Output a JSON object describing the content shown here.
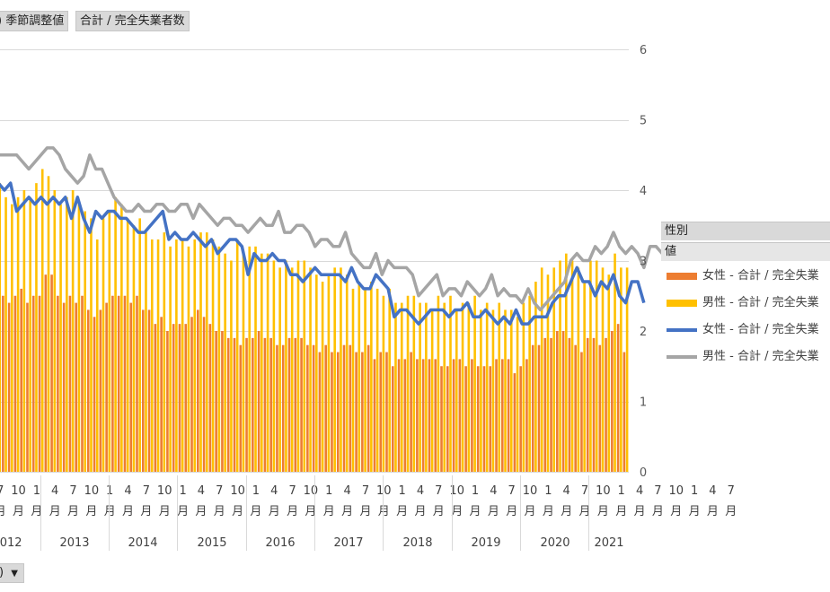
{
  "filters": {
    "field1": ") 季節調整値",
    "field2": "合計 / 完全失業者数"
  },
  "legend": {
    "field_label": "性別",
    "values_label": "値",
    "items": [
      {
        "label": "女性 - 合計 / 完全失業",
        "type": "bar",
        "color": "#ed7d31"
      },
      {
        "label": "男性 - 合計 / 完全失業",
        "type": "bar",
        "color": "#ffc000"
      },
      {
        "label": "女性 - 合計 / 完全失業",
        "type": "line",
        "color": "#4472c4"
      },
      {
        "label": "男性 - 合計 / 完全失業",
        "type": "line",
        "color": "#a5a5a5"
      }
    ]
  },
  "axis_field_button": ")",
  "chart_data": {
    "type": "bar",
    "ylim": [
      0,
      6
    ],
    "yticks": [
      "0",
      "1",
      "2",
      "3",
      "4",
      "5",
      "6"
    ],
    "grid": true,
    "legend_position": "right",
    "year_labels": [
      "2012",
      "2013",
      "2014",
      "2015",
      "2016",
      "2017",
      "2018",
      "2019",
      "2020",
      "2021"
    ],
    "month_tick_labels": [
      "7",
      "10",
      "1",
      "4",
      "7",
      "10",
      "1",
      "4",
      "7",
      "10",
      "1",
      "4",
      "7",
      "10",
      "1",
      "4",
      "7",
      "10",
      "1",
      "4",
      "7",
      "10",
      "1",
      "4",
      "7",
      "10",
      "1",
      "4",
      "7",
      "10",
      "1",
      "4",
      "7",
      "10",
      "1",
      "4",
      "7",
      "10",
      "1",
      "4",
      "7"
    ],
    "month_unit": "月",
    "series": [
      {
        "name": "女性 - 合計 / 完全失業",
        "type": "bar",
        "color": "#ed7d31",
        "values": [
          2.7,
          2.6,
          2.5,
          2.4,
          2.5,
          2.6,
          2.4,
          2.5,
          2.5,
          2.8,
          2.8,
          2.5,
          2.4,
          2.5,
          2.4,
          2.5,
          2.3,
          2.2,
          2.3,
          2.4,
          2.5,
          2.5,
          2.5,
          2.4,
          2.5,
          2.3,
          2.3,
          2.1,
          2.2,
          2.0,
          2.1,
          2.1,
          2.1,
          2.2,
          2.3,
          2.2,
          2.1,
          2.0,
          2.0,
          1.9,
          1.9,
          1.8,
          1.9,
          1.9,
          2.0,
          1.9,
          1.9,
          1.8,
          1.8,
          1.9,
          1.9,
          1.9,
          1.8,
          1.8,
          1.7,
          1.8,
          1.7,
          1.7,
          1.8,
          1.8,
          1.7,
          1.7,
          1.8,
          1.6,
          1.7,
          1.7,
          1.5,
          1.6,
          1.6,
          1.7,
          1.6,
          1.6,
          1.6,
          1.6,
          1.5,
          1.5,
          1.6,
          1.6,
          1.5,
          1.6,
          1.5,
          1.5,
          1.5,
          1.6,
          1.6,
          1.6,
          1.4,
          1.5,
          1.6,
          1.8,
          1.8,
          1.9,
          1.9,
          2.0,
          2.0,
          1.9,
          1.8,
          1.7,
          1.9,
          1.9,
          1.8,
          1.9,
          2.0,
          2.1,
          1.7
        ]
      },
      {
        "name": "男性 - 合計 / 完全失業",
        "type": "bar",
        "color": "#ffc000",
        "values": [
          4.2,
          4.1,
          3.9,
          3.8,
          3.9,
          4.0,
          3.9,
          4.1,
          4.3,
          4.2,
          4.0,
          3.8,
          3.9,
          4.0,
          3.8,
          3.7,
          3.6,
          3.3,
          3.6,
          3.7,
          3.9,
          3.8,
          3.6,
          3.5,
          3.6,
          3.4,
          3.3,
          3.3,
          3.4,
          3.2,
          3.3,
          3.3,
          3.2,
          3.3,
          3.4,
          3.4,
          3.3,
          3.2,
          3.1,
          3.0,
          3.3,
          3.1,
          3.2,
          3.2,
          3.1,
          3.1,
          3.0,
          2.9,
          3.0,
          2.9,
          3.0,
          3.0,
          2.9,
          2.8,
          2.7,
          2.8,
          2.9,
          2.9,
          2.8,
          2.6,
          2.7,
          2.6,
          2.7,
          2.6,
          2.5,
          2.6,
          2.4,
          2.4,
          2.5,
          2.5,
          2.4,
          2.4,
          2.3,
          2.5,
          2.4,
          2.5,
          2.3,
          2.4,
          2.4,
          2.5,
          2.3,
          2.4,
          2.3,
          2.4,
          2.3,
          2.3,
          2.2,
          2.4,
          2.5,
          2.7,
          2.9,
          2.8,
          2.9,
          3.0,
          3.1,
          3.0,
          2.9,
          2.7,
          3.0,
          3.0,
          2.9,
          2.8,
          3.1,
          2.9,
          2.9
        ]
      },
      {
        "name": "女性 - 合計 / 完全失業",
        "type": "line",
        "color": "#4472c4",
        "values": [
          4.2,
          4.1,
          4.0,
          4.1,
          3.7,
          3.8,
          3.9,
          3.8,
          3.9,
          3.8,
          3.9,
          3.8,
          3.9,
          3.6,
          3.9,
          3.6,
          3.4,
          3.7,
          3.6,
          3.7,
          3.7,
          3.6,
          3.6,
          3.5,
          3.4,
          3.4,
          3.5,
          3.6,
          3.7,
          3.3,
          3.4,
          3.3,
          3.3,
          3.4,
          3.3,
          3.2,
          3.3,
          3.1,
          3.2,
          3.3,
          3.3,
          3.2,
          2.8,
          3.1,
          3.0,
          3.0,
          3.1,
          3.0,
          3.0,
          2.8,
          2.8,
          2.7,
          2.8,
          2.9,
          2.8,
          2.8,
          2.8,
          2.8,
          2.7,
          2.9,
          2.7,
          2.6,
          2.6,
          2.8,
          2.7,
          2.6,
          2.2,
          2.3,
          2.3,
          2.2,
          2.1,
          2.2,
          2.3,
          2.3,
          2.3,
          2.2,
          2.3,
          2.3,
          2.4,
          2.2,
          2.2,
          2.3,
          2.2,
          2.1,
          2.2,
          2.1,
          2.3,
          2.1,
          2.1,
          2.2,
          2.2,
          2.2,
          2.4,
          2.5,
          2.5,
          2.7,
          2.9,
          2.7,
          2.7,
          2.5,
          2.7,
          2.6,
          2.8,
          2.5,
          2.4,
          2.7,
          2.7,
          2.4
        ]
      },
      {
        "name": "男性 - 合計 / 完全失業",
        "type": "line",
        "color": "#a5a5a5",
        "values": [
          4.5,
          4.5,
          4.5,
          4.5,
          4.5,
          4.4,
          4.3,
          4.4,
          4.5,
          4.6,
          4.6,
          4.5,
          4.3,
          4.2,
          4.1,
          4.2,
          4.5,
          4.3,
          4.3,
          4.1,
          3.9,
          3.8,
          3.7,
          3.7,
          3.8,
          3.7,
          3.7,
          3.8,
          3.8,
          3.7,
          3.7,
          3.8,
          3.8,
          3.6,
          3.8,
          3.7,
          3.6,
          3.5,
          3.6,
          3.6,
          3.5,
          3.5,
          3.4,
          3.5,
          3.6,
          3.5,
          3.5,
          3.7,
          3.4,
          3.4,
          3.5,
          3.5,
          3.4,
          3.2,
          3.3,
          3.3,
          3.2,
          3.2,
          3.4,
          3.1,
          3.0,
          2.9,
          2.9,
          3.1,
          2.8,
          3.0,
          2.9,
          2.9,
          2.9,
          2.8,
          2.5,
          2.6,
          2.7,
          2.8,
          2.5,
          2.6,
          2.6,
          2.5,
          2.7,
          2.6,
          2.5,
          2.6,
          2.8,
          2.5,
          2.6,
          2.5,
          2.5,
          2.4,
          2.6,
          2.4,
          2.3,
          2.4,
          2.5,
          2.6,
          2.7,
          3.0,
          3.1,
          3.0,
          3.0,
          3.2,
          3.1,
          3.2,
          3.4,
          3.2,
          3.1,
          3.2,
          3.1,
          2.9,
          3.2,
          3.2,
          3.1,
          3.1
        ]
      }
    ]
  }
}
